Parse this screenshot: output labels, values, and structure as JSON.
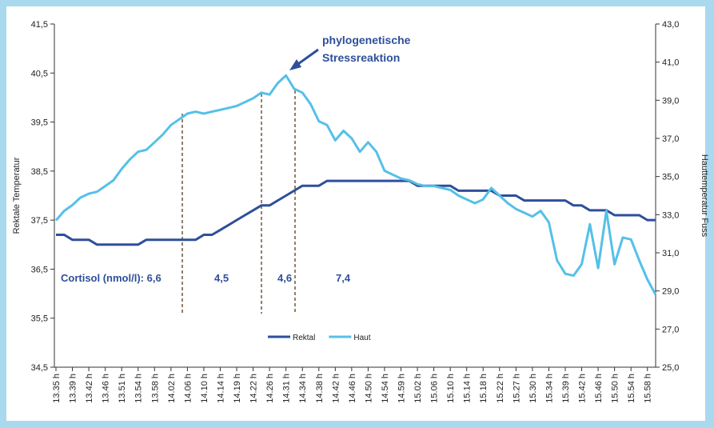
{
  "chart_data": {
    "type": "line",
    "y_label": "Rektale Temperatur",
    "y2_label": "Hauttemperatur Fuss",
    "categories": [
      "13.35 h",
      null,
      "13.39 h",
      null,
      "13.42 h",
      null,
      "13.46 h",
      null,
      "13.51 h",
      null,
      "13.54 h",
      null,
      "13.58 h",
      null,
      "14.02 h",
      null,
      "14.06 h",
      null,
      "14.10 h",
      null,
      "14.14 h",
      null,
      "14.19 h",
      null,
      "14.22 h",
      null,
      "14.26 h",
      null,
      "14.31 h",
      null,
      "14.34 h",
      null,
      "14.38 h",
      null,
      "14.42 h",
      null,
      "14.46 h",
      null,
      "14.50 h",
      null,
      "14.54 h",
      null,
      "14.59 h",
      null,
      "15.02 h",
      null,
      "15.06 h",
      null,
      "15.10 h",
      null,
      "15.14 h",
      null,
      "15.18 h",
      null,
      "15.22 h",
      null,
      "15.27 h",
      null,
      "15.30 h",
      null,
      "15.34 h",
      null,
      "15.39 h",
      null,
      "15.42 h",
      null,
      "15.46 h",
      null,
      "15.50 h",
      null,
      "15.54 h",
      null,
      "15.58 h",
      null
    ],
    "series": [
      {
        "name": "Rektal",
        "color": "#2e4f9a",
        "values": [
          37.2,
          37.2,
          37.1,
          37.1,
          37.1,
          37.0,
          37.0,
          37.0,
          37.0,
          37.0,
          37.0,
          37.1,
          37.1,
          37.1,
          37.1,
          37.1,
          37.1,
          37.1,
          37.2,
          37.2,
          37.3,
          37.4,
          37.5,
          37.6,
          37.7,
          37.8,
          37.8,
          37.9,
          38.0,
          38.1,
          38.2,
          38.2,
          38.2,
          38.3,
          38.3,
          38.3,
          38.3,
          38.3,
          38.3,
          38.3,
          38.3,
          38.3,
          38.3,
          38.3,
          38.2,
          38.2,
          38.2,
          38.2,
          38.2,
          38.1,
          38.1,
          38.1,
          38.1,
          38.1,
          38.0,
          38.0,
          38.0,
          37.9,
          37.9,
          37.9,
          37.9,
          37.9,
          37.9,
          37.8,
          37.8,
          37.7,
          37.7,
          37.7,
          37.6,
          37.6,
          37.6,
          37.6,
          37.5,
          37.5
        ]
      },
      {
        "name": "Haut",
        "color": "#55c0e8",
        "axis": "y2",
        "values": [
          32.7,
          33.2,
          33.5,
          33.9,
          34.1,
          34.2,
          34.5,
          34.8,
          35.4,
          35.9,
          36.3,
          36.4,
          36.8,
          37.2,
          37.7,
          38.0,
          38.3,
          38.4,
          38.3,
          38.4,
          38.5,
          38.6,
          38.7,
          38.9,
          39.1,
          39.4,
          39.3,
          39.9,
          40.3,
          39.6,
          39.4,
          38.8,
          37.9,
          37.7,
          36.9,
          37.4,
          37.0,
          36.3,
          36.8,
          36.3,
          35.3,
          35.1,
          34.9,
          34.8,
          34.6,
          34.5,
          34.5,
          34.4,
          34.3,
          34.0,
          33.8,
          33.6,
          33.8,
          34.4,
          34.0,
          33.6,
          33.3,
          33.1,
          32.9,
          33.2,
          32.6,
          30.6,
          29.9,
          29.8,
          30.4,
          32.5,
          30.2,
          33.2,
          30.4,
          31.8,
          31.7,
          30.6,
          29.6,
          28.8
        ]
      }
    ],
    "ylim": [
      34.5,
      41.5
    ],
    "yticks": [
      {
        "value": 34.5,
        "label": "34,5"
      },
      {
        "value": 35.5,
        "label": "35,5"
      },
      {
        "value": 36.5,
        "label": "36,5"
      },
      {
        "value": 37.5,
        "label": "37,5"
      },
      {
        "value": 38.5,
        "label": "38,5"
      },
      {
        "value": 39.5,
        "label": "39,5"
      },
      {
        "value": 40.5,
        "label": "40,5"
      },
      {
        "value": 41.5,
        "label": "41,5"
      }
    ],
    "y2lim": [
      25,
      43
    ],
    "y2ticks": [
      {
        "value": 25,
        "label": "25,0"
      },
      {
        "value": 27,
        "label": "27,0"
      },
      {
        "value": 29,
        "label": "29,0"
      },
      {
        "value": 31,
        "label": "31,0"
      },
      {
        "value": 33,
        "label": "33,0"
      },
      {
        "value": 35,
        "label": "35,0"
      },
      {
        "value": 37,
        "label": "37,0"
      },
      {
        "value": 39,
        "label": "39,0"
      },
      {
        "value": 41,
        "label": "41,0"
      },
      {
        "value": 43,
        "label": "43,0"
      }
    ],
    "grid": false,
    "legend": "bottom",
    "annotations": [
      "phylogenetische",
      "Stressreaktion"
    ],
    "cortisol_labels": [
      "Cortisol (nmol/l): 6,6",
      "4,5",
      "4,6",
      "7,4"
    ]
  }
}
